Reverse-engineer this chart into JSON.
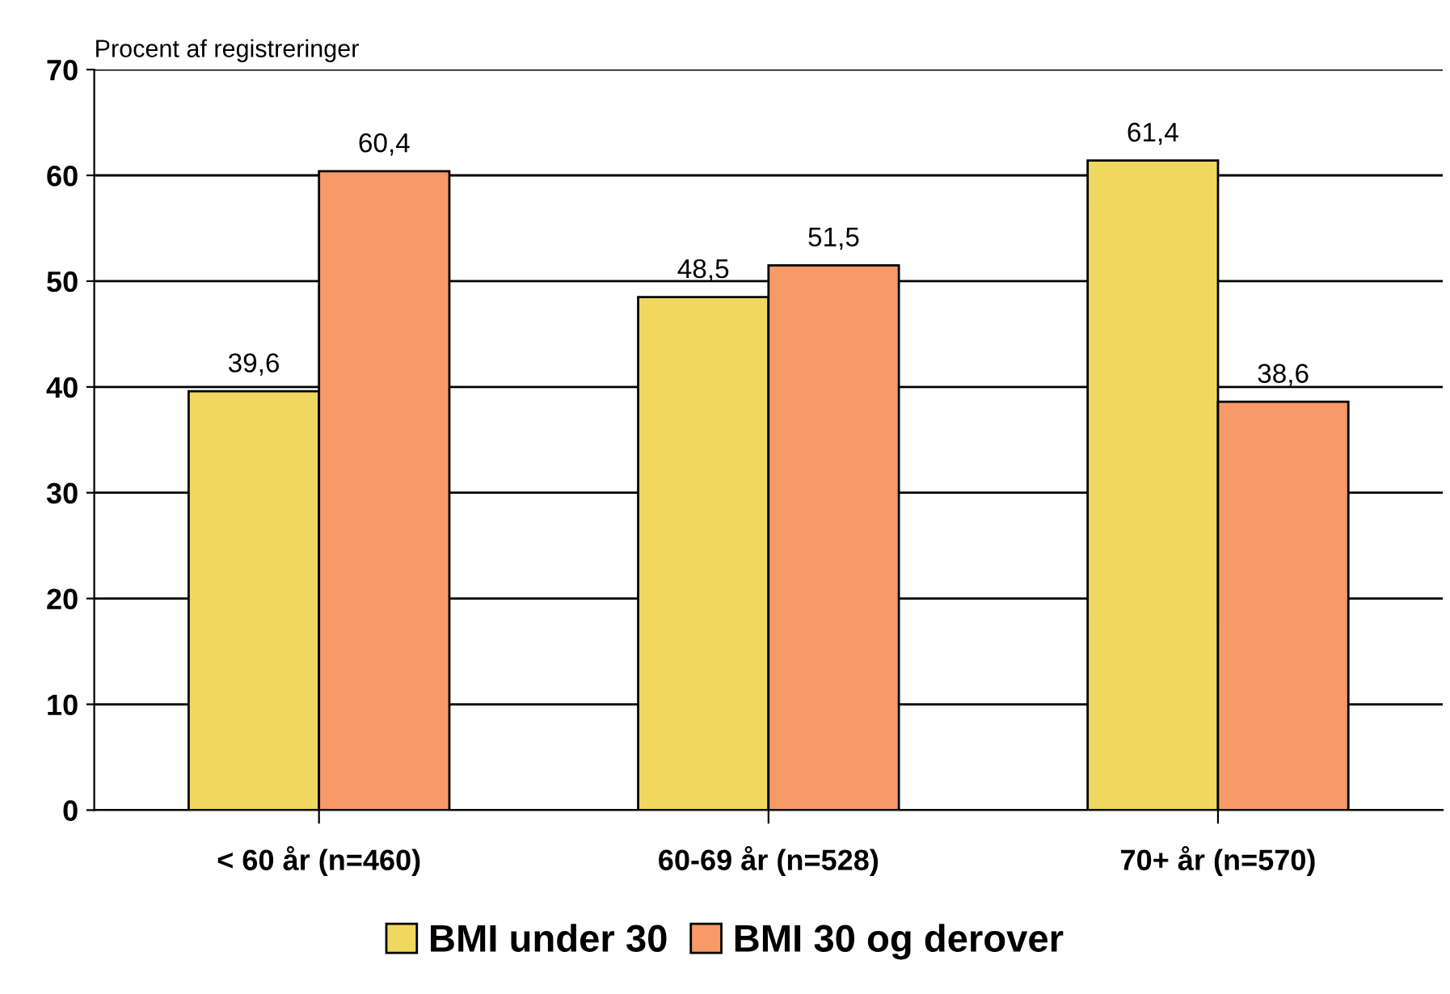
{
  "chart_data": {
    "type": "bar",
    "ylabel": "Procent af registreringer",
    "categories": [
      "< 60 år (n=460)",
      "60-69 år (n=528)",
      "70+ år (n=570)"
    ],
    "series": [
      {
        "name": "BMI under 30",
        "color": "#f0d860",
        "values": [
          39.6,
          48.5,
          61.4
        ],
        "value_labels": [
          "39,6",
          "48,5",
          "61,4"
        ]
      },
      {
        "name": "BMI 30 og derover",
        "color": "#f79a68",
        "values": [
          60.4,
          51.5,
          38.6
        ],
        "value_labels": [
          "60,4",
          "51,5",
          "38,6"
        ]
      }
    ],
    "ylim": [
      0,
      70
    ],
    "yticks": [
      0,
      10,
      20,
      30,
      40,
      50,
      60,
      70
    ],
    "grid": "y",
    "legend": "bottom"
  }
}
